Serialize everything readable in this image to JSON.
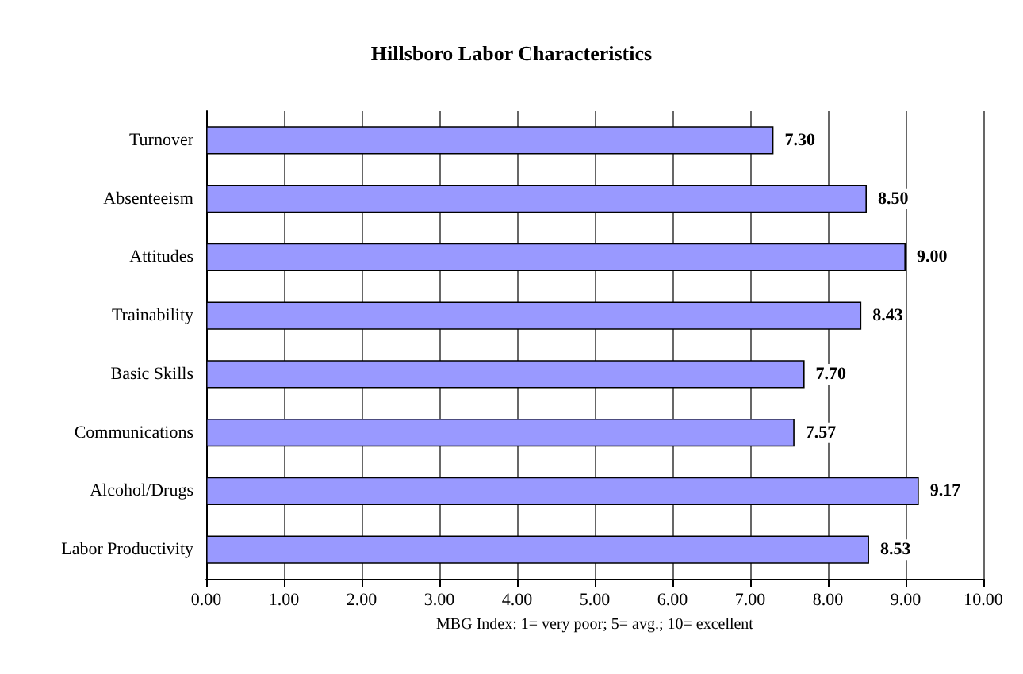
{
  "chart_data": {
    "type": "bar",
    "orientation": "horizontal",
    "title": "Hillsboro Labor Characteristics",
    "xlabel": "MBG Index: 1= very poor; 5= avg.; 10= excellent",
    "categories": [
      "Turnover",
      "Absenteeism",
      "Attitudes",
      "Trainability",
      "Basic Skills",
      "Communications",
      "Alcohol/Drugs",
      "Labor Productivity"
    ],
    "values": [
      7.3,
      8.5,
      9.0,
      8.43,
      7.7,
      7.57,
      9.17,
      8.53
    ],
    "value_labels": [
      "7.30",
      "8.50",
      "9.00",
      "8.43",
      "7.70",
      "7.57",
      "9.17",
      "8.53"
    ],
    "color": "#9999ff",
    "xlim": [
      0,
      10
    ],
    "xticks": [
      {
        "value": 0,
        "label": "0.00"
      },
      {
        "value": 1,
        "label": "1.00"
      },
      {
        "value": 2,
        "label": "2.00"
      },
      {
        "value": 3,
        "label": "3.00"
      },
      {
        "value": 4,
        "label": "4.00"
      },
      {
        "value": 5,
        "label": "5.00"
      },
      {
        "value": 6,
        "label": "6.00"
      },
      {
        "value": 7,
        "label": "7.00"
      },
      {
        "value": 8,
        "label": "8.00"
      },
      {
        "value": 9,
        "label": "9.00"
      },
      {
        "value": 10,
        "label": "10.00"
      }
    ],
    "grid": "x"
  }
}
